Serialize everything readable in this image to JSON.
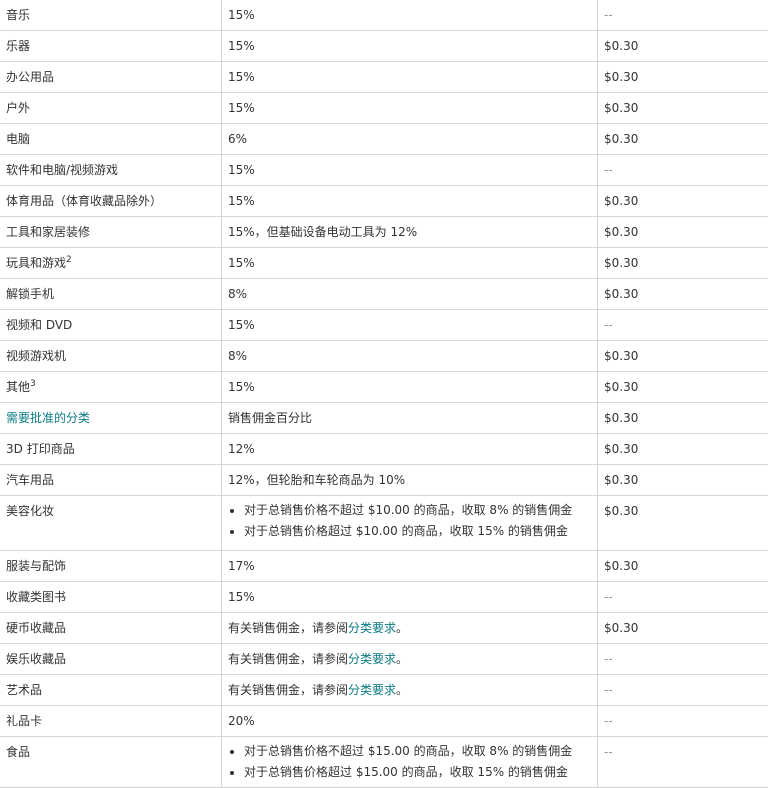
{
  "colors": {
    "link": "#0a7b83",
    "text": "#333333",
    "border": "#d5d5d5"
  },
  "rows": [
    {
      "category": "音乐",
      "fee": "15%",
      "min": "--"
    },
    {
      "category": "乐器",
      "fee": "15%",
      "min": "$0.30"
    },
    {
      "category": "办公用品",
      "fee": "15%",
      "min": "$0.30"
    },
    {
      "category": "户外",
      "fee": "15%",
      "min": "$0.30"
    },
    {
      "category": "电脑",
      "fee": "6%",
      "min": "$0.30"
    },
    {
      "category": "软件和电脑/视频游戏",
      "fee": "15%",
      "min": "--"
    },
    {
      "category": "体育用品（体育收藏品除外）",
      "fee": "15%",
      "min": "$0.30"
    },
    {
      "category": "工具和家居装修",
      "fee": "15%，但基础设备电动工具为 12%",
      "min": "$0.30"
    },
    {
      "category": "玩具和游戏",
      "sup": "2",
      "fee": "15%",
      "min": "$0.30"
    },
    {
      "category": "解锁手机",
      "fee": "8%",
      "min": "$0.30"
    },
    {
      "category": "视频和 DVD",
      "fee": "15%",
      "min": "--"
    },
    {
      "category": "视频游戏机",
      "fee": "8%",
      "min": "$0.30"
    },
    {
      "category": "其他",
      "sup": "3",
      "fee": "15%",
      "min": "$0.30"
    },
    {
      "category": "需要批准的分类",
      "fee": "销售佣金百分比",
      "min": "$0.30"
    },
    {
      "category": "3D 打印商品",
      "fee": "12%",
      "min": "$0.30"
    },
    {
      "category": "汽车用品",
      "fee": "12%，但轮胎和车轮商品为 10%",
      "min": "$0.30"
    },
    {
      "category": "美容化妆",
      "bullets": [
        "对于总销售价格不超过 $10.00 的商品，收取 8% 的销售佣金",
        "对于总销售价格超过 $10.00 的商品，收取 15% 的销售佣金"
      ],
      "min": "$0.30"
    },
    {
      "category": "服装与配饰",
      "fee": "17%",
      "min": "$0.30"
    },
    {
      "category": "收藏类图书",
      "fee": "15%",
      "min": "--"
    },
    {
      "category": "硬币收藏品",
      "fee_prefix": "有关销售佣金，请参阅",
      "fee_link": "分类要求",
      "fee_suffix": "。",
      "min": "$0.30"
    },
    {
      "category": "娱乐收藏品",
      "fee_prefix": "有关销售佣金，请参阅",
      "fee_link": "分类要求",
      "fee_suffix": "。",
      "min": "--"
    },
    {
      "category": "艺术品",
      "fee_prefix": "有关销售佣金，请参阅",
      "fee_link": "分类要求",
      "fee_suffix": "。",
      "min": "--"
    },
    {
      "category": "礼品卡",
      "fee": "20%",
      "min": "--"
    },
    {
      "category": "食品",
      "bullets": [
        "对于总销售价格不超过 $15.00 的商品，收取 8% 的销售佣金",
        "对于总销售价格超过 $15.00 的商品，收取 15% 的销售佣金"
      ],
      "min": "--"
    }
  ]
}
